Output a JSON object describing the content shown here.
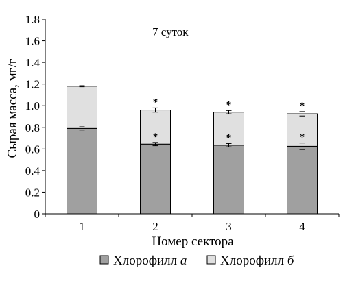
{
  "chart_data": {
    "type": "bar",
    "stacked": true,
    "annotation": "7 суток",
    "xlabel": "Номер сектора",
    "ylabel": "Сырая масса, мг/г",
    "ylim": [
      0,
      1.8
    ],
    "yticks": [
      "0",
      "0.2",
      "0.4",
      "0.6",
      "0.8",
      "1.0",
      "1.2",
      "1.4",
      "1.6",
      "1.8"
    ],
    "categories": [
      "1",
      "2",
      "3",
      "4"
    ],
    "series": [
      {
        "name_prefix": "Хлорофилл ",
        "name_italic": "а",
        "values": [
          0.79,
          0.645,
          0.635,
          0.625
        ],
        "errors": [
          0.015,
          0.015,
          0.015,
          0.03
        ],
        "significance": [
          "",
          "*",
          "*",
          "*"
        ],
        "color": "#a0a0a0"
      },
      {
        "name_prefix": "Хлорофилл ",
        "name_italic": "б",
        "values": [
          0.39,
          0.315,
          0.305,
          0.3
        ],
        "errors": [
          0.005,
          0.02,
          0.015,
          0.02
        ],
        "significance": [
          "",
          "*",
          "*",
          "*"
        ],
        "color": "#e0e0e0"
      }
    ],
    "grid": false,
    "legend_position": "bottom"
  }
}
